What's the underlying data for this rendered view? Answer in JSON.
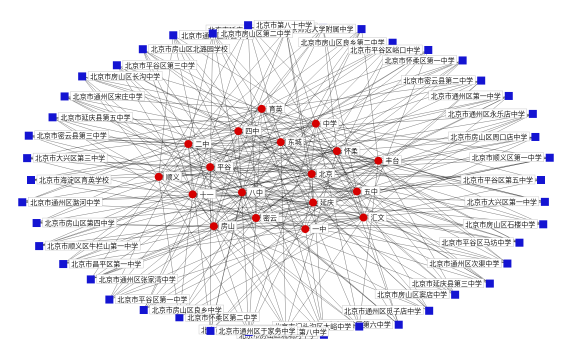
{
  "graph": {
    "colors": {
      "outer_node": "#1414d2",
      "inner_node": "#d60000",
      "edge": "#111111",
      "background": "#ffffff"
    },
    "inner_nodes": [
      {
        "id": "i1",
        "label": "北京"
      },
      {
        "id": "i2",
        "label": "八中"
      },
      {
        "id": "i3",
        "label": "东城"
      },
      {
        "id": "i4",
        "label": "延庆"
      },
      {
        "id": "i5",
        "label": "平谷"
      },
      {
        "id": "i6",
        "label": "怀柔"
      },
      {
        "id": "i7",
        "label": "密云"
      },
      {
        "id": "i8",
        "label": "四中"
      },
      {
        "id": "i9",
        "label": "五中"
      },
      {
        "id": "i10",
        "label": "十一"
      },
      {
        "id": "i11",
        "label": "中学"
      },
      {
        "id": "i12",
        "label": "一中"
      },
      {
        "id": "i13",
        "label": "二中"
      },
      {
        "id": "i14",
        "label": "丰台"
      },
      {
        "id": "i15",
        "label": "房山"
      },
      {
        "id": "i16",
        "label": "育英"
      },
      {
        "id": "i17",
        "label": "汇文"
      },
      {
        "id": "i18",
        "label": "顺义"
      }
    ],
    "outer_nodes": [
      {
        "id": "o1",
        "label": "北京市延庆县第一中学"
      },
      {
        "id": "o2",
        "label": "延庆县西屯中学"
      },
      {
        "id": "o3",
        "label": "北京师范大学附属中学"
      },
      {
        "id": "o4",
        "label": "北京市房山区良乡第二中学"
      },
      {
        "id": "o5",
        "label": "北京市平谷区峪口中学"
      },
      {
        "id": "o6",
        "label": "北京市怀柔区第一中学"
      },
      {
        "id": "o7",
        "label": "北京市密云县第二中学"
      },
      {
        "id": "o8",
        "label": "北京市通州区第一中学"
      },
      {
        "id": "o9",
        "label": "北京市通州区永乐店中学"
      },
      {
        "id": "o10",
        "label": "北京市房山区周口店中学"
      },
      {
        "id": "o11",
        "label": "北京市顺义区第一中学"
      },
      {
        "id": "o12",
        "label": "北京市平谷区第五中学"
      },
      {
        "id": "o13",
        "label": "北京市大兴区第一中学"
      },
      {
        "id": "o14",
        "label": "北京市房山区石楼中学"
      },
      {
        "id": "o15",
        "label": "北京市平谷区马坊中学"
      },
      {
        "id": "o16",
        "label": "北京市通州区次渠中学"
      },
      {
        "id": "o17",
        "label": "北京市延庆县第三中学"
      },
      {
        "id": "o18",
        "label": "北京市房山区窦店中学"
      },
      {
        "id": "o19",
        "label": "北京市通州区觅子店中学"
      },
      {
        "id": "o20",
        "label": "北京市平谷区第六中学"
      },
      {
        "id": "o21",
        "label": "北京市门头沟区大峪中学"
      },
      {
        "id": "o22",
        "label": "北京市房山区琉璃河中学"
      },
      {
        "id": "o23",
        "label": "北京市石景山区古城中学"
      },
      {
        "id": "o24",
        "label": "北京市大兴区第八中学"
      },
      {
        "id": "o25",
        "label": "北京市通州区于家务中学"
      },
      {
        "id": "o26",
        "label": "北京市怀柔区第二中学"
      },
      {
        "id": "o27",
        "label": "北京市房山区良乡中学"
      },
      {
        "id": "o28",
        "label": "北京市平谷区第一中学"
      },
      {
        "id": "o29",
        "label": "北京市通州区张家湾中学"
      },
      {
        "id": "o30",
        "label": "北京市昌平区第一中学"
      },
      {
        "id": "o31",
        "label": "北京市顺义区牛栏山第一中学"
      },
      {
        "id": "o32",
        "label": "北京市房山区第四中学"
      },
      {
        "id": "o33",
        "label": "北京市通州区潞河中学"
      },
      {
        "id": "o34",
        "label": "北京市海淀区育英学校"
      },
      {
        "id": "o35",
        "label": "北京市大兴区第三中学"
      },
      {
        "id": "o36",
        "label": "北京市密云县第三中学"
      },
      {
        "id": "o37",
        "label": "北京市延庆县第五中学"
      },
      {
        "id": "o38",
        "label": "北京市通州区宋庄中学"
      },
      {
        "id": "o39",
        "label": "北京市房山区长沟中学"
      },
      {
        "id": "o40",
        "label": "北京市平谷区第三中学"
      },
      {
        "id": "o41",
        "label": "北京市房山区北潞园学校"
      },
      {
        "id": "o42",
        "label": "北京市通州区漷县中学"
      },
      {
        "id": "o43",
        "label": "北京市房山区第二中学"
      },
      {
        "id": "o44",
        "label": "北京市第八十中学"
      }
    ],
    "edges_per_outer_node": 6
  }
}
